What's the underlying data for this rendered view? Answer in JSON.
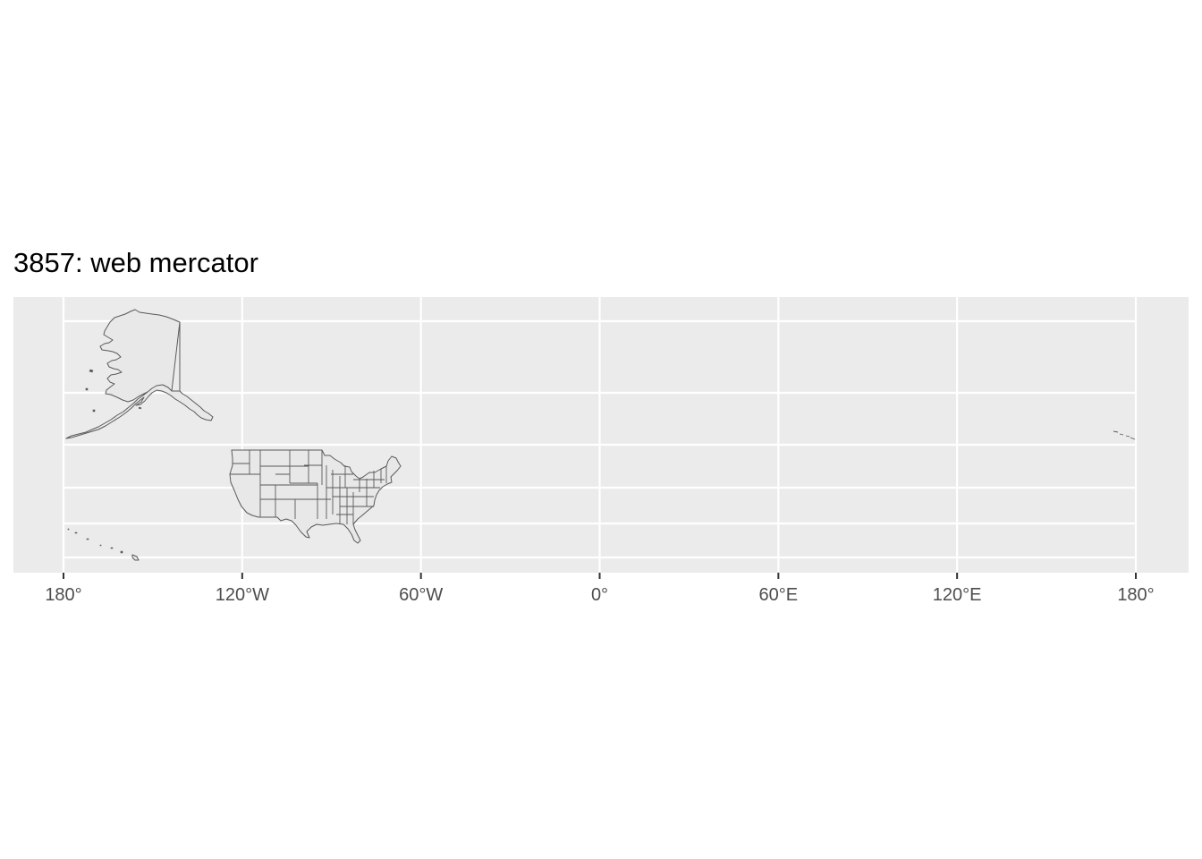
{
  "title": "3857: web mercator",
  "map": {
    "projection": "web mercator (EPSG:3857)",
    "x_axis": {
      "range_deg": [
        -188.3,
        196
      ],
      "ticks": [
        {
          "lon": -180,
          "label": "180°"
        },
        {
          "lon": -120,
          "label": "120°W"
        },
        {
          "lon": -60,
          "label": "60°W"
        },
        {
          "lon": 0,
          "label": "0°"
        },
        {
          "lon": 60,
          "label": "60°E"
        },
        {
          "lon": 120,
          "label": "120°E"
        },
        {
          "lon": 180,
          "label": "180°"
        }
      ]
    },
    "y_gridlines": 7,
    "panel_background": "#ebebeb",
    "gridline_color": "#ffffff",
    "fill_color": "#e8e8e8",
    "outline_color": "#595959",
    "features": [
      "Alaska",
      "Contiguous United States (state borders)",
      "Hawaii",
      "Aleutian Islands"
    ]
  }
}
